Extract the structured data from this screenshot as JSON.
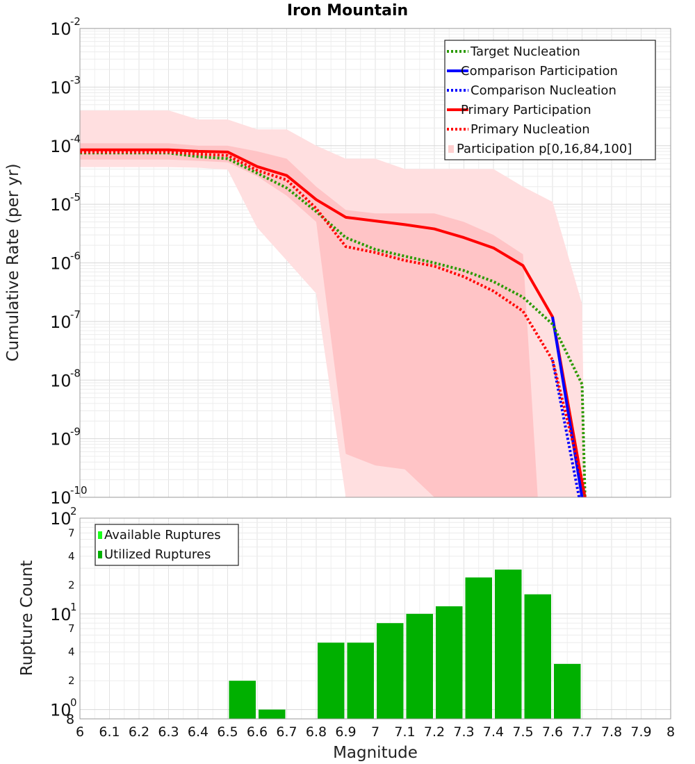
{
  "chart_data": [
    {
      "type": "line",
      "title": "Iron Mountain",
      "xlabel": "",
      "ylabel": "Cumulative Rate (per yr)",
      "y_scale": "log",
      "xlim": [
        6,
        8
      ],
      "ylim": [
        1e-10,
        0.01
      ],
      "y_tick_bases": [
        "10",
        "10",
        "10",
        "10",
        "10",
        "10",
        "10",
        "10",
        "10"
      ],
      "y_tick_exponents": [
        "-10",
        "-9",
        "-8",
        "-7",
        "-6",
        "-5",
        "-4",
        "-3",
        "-2"
      ],
      "legend_position": "top-right",
      "legend": [
        {
          "label": "Target Nucleation",
          "color": "#2a9a00",
          "style": "dotted"
        },
        {
          "label": "Comparison Participation",
          "color": "#0000ff",
          "style": "solid"
        },
        {
          "label": "Comparison Nucleation",
          "color": "#0000ff",
          "style": "dotted"
        },
        {
          "label": "Primary Participation",
          "color": "#ff0000",
          "style": "solid"
        },
        {
          "label": "Primary Nucleation",
          "color": "#ff0000",
          "style": "dotted"
        },
        {
          "label": "Participation p[0,16,84,100]",
          "color": "#ffcfcf",
          "style": "band"
        }
      ],
      "bands": [
        {
          "name": "Participation p[0,100]",
          "color": "#ffdfe0",
          "x": [
            6.0,
            6.1,
            6.2,
            6.3,
            6.4,
            6.5,
            6.6,
            6.7,
            6.8,
            6.9,
            7.0,
            7.1,
            7.2,
            7.3,
            7.4,
            7.5,
            7.6,
            7.7,
            7.71
          ],
          "upper": [
            0.0004,
            0.0004,
            0.0004,
            0.0004,
            0.00028,
            0.00028,
            0.00019,
            0.00019,
            0.0001,
            6e-05,
            6e-05,
            4e-05,
            4e-05,
            4e-05,
            4e-05,
            2e-05,
            1.1e-05,
            2e-07,
            1e-10
          ],
          "lower": [
            4.3e-05,
            4.3e-05,
            4.3e-05,
            4.3e-05,
            4.2e-05,
            3.9e-05,
            4e-06,
            1.1e-06,
            3e-07,
            1e-10,
            1e-10,
            1e-10,
            1e-10,
            1e-10,
            1e-10,
            1e-10,
            1e-10,
            1e-10,
            1e-10
          ]
        },
        {
          "name": "Participation p[16,84]",
          "color": "#ffc4c6",
          "x": [
            6.0,
            6.1,
            6.2,
            6.3,
            6.4,
            6.5,
            6.6,
            6.7,
            6.8,
            6.9,
            7.0,
            7.1,
            7.2,
            7.3,
            7.4,
            7.5,
            7.55
          ],
          "upper": [
            0.00011,
            0.00011,
            0.00011,
            0.00011,
            0.0001,
            0.0001,
            8e-05,
            6e-05,
            2e-05,
            8e-06,
            7e-06,
            7e-06,
            7e-06,
            5e-06,
            3e-06,
            1.4e-06,
            1e-10
          ],
          "lower": [
            5.8e-05,
            5.8e-05,
            5.8e-05,
            5.8e-05,
            5.5e-05,
            5.2e-05,
            3e-05,
            1.4e-05,
            5e-06,
            5.5e-10,
            3.5e-10,
            3e-10,
            1e-10,
            1e-10,
            1e-10,
            1e-10,
            1e-10
          ]
        }
      ],
      "series": [
        {
          "name": "Primary Participation",
          "color": "#ff0000",
          "style": "solid",
          "x": [
            6.0,
            6.1,
            6.2,
            6.3,
            6.4,
            6.5,
            6.6,
            6.7,
            6.8,
            6.9,
            7.0,
            7.1,
            7.2,
            7.3,
            7.4,
            7.5,
            7.6,
            7.7,
            7.71
          ],
          "values": [
            8.5e-05,
            8.5e-05,
            8.5e-05,
            8.5e-05,
            8e-05,
            7.8e-05,
            4.4e-05,
            3.1e-05,
            1.2e-05,
            6e-06,
            5.2e-06,
            4.5e-06,
            3.8e-06,
            2.7e-06,
            1.8e-06,
            9e-07,
            1.2e-07,
            1.8e-10,
            1e-10
          ]
        },
        {
          "name": "Comparison Participation",
          "color": "#0000ff",
          "style": "solid",
          "x": [
            7.6,
            7.7
          ],
          "values": [
            1.2e-07,
            1e-10
          ]
        },
        {
          "name": "Comparison Nucleation",
          "color": "#0000ff",
          "style": "dotted",
          "x": [
            7.6,
            7.69
          ],
          "values": [
            2.2e-08,
            1e-10
          ]
        },
        {
          "name": "Target Nucleation",
          "color": "#2a9a00",
          "style": "dotted",
          "x": [
            6.0,
            6.1,
            6.2,
            6.3,
            6.4,
            6.5,
            6.6,
            6.7,
            6.8,
            6.9,
            7.0,
            7.1,
            7.2,
            7.3,
            7.4,
            7.5,
            7.6,
            7.7,
            7.71
          ],
          "values": [
            7.5e-05,
            7.5e-05,
            7.5e-05,
            7.5e-05,
            6.5e-05,
            6e-05,
            3.4e-05,
            1.9e-05,
            7.5e-06,
            2.7e-06,
            1.7e-06,
            1.3e-06,
            1e-06,
            7.4e-07,
            4.8e-07,
            2.6e-07,
            9e-08,
            8.5e-09,
            1e-10
          ]
        },
        {
          "name": "Primary Nucleation",
          "color": "#ff0000",
          "style": "dotted",
          "x": [
            6.0,
            6.1,
            6.2,
            6.3,
            6.4,
            6.5,
            6.6,
            6.7,
            6.8,
            6.9,
            7.0,
            7.1,
            7.2,
            7.3,
            7.4,
            7.5,
            7.6,
            7.7,
            7.71
          ],
          "values": [
            7.8e-05,
            7.8e-05,
            7.8e-05,
            7.8e-05,
            7.2e-05,
            6.8e-05,
            3.8e-05,
            2.6e-05,
            8.5e-06,
            1.9e-06,
            1.5e-06,
            1.1e-06,
            8.8e-07,
            5.8e-07,
            3.3e-07,
            1.5e-07,
            2.2e-08,
            2e-10,
            1e-10
          ]
        }
      ]
    },
    {
      "type": "bar",
      "title": "",
      "xlabel": "Magnitude",
      "ylabel": "Rupture Count",
      "y_scale": "log",
      "xlim": [
        6,
        8
      ],
      "ylim": [
        0.8,
        100
      ],
      "x_ticks": [
        "6",
        "6.1",
        "6.2",
        "6.3",
        "6.4",
        "6.5",
        "6.6",
        "6.7",
        "6.8",
        "6.9",
        "7",
        "7.1",
        "7.2",
        "7.3",
        "7.4",
        "7.5",
        "7.6",
        "7.7",
        "7.8",
        "7.9",
        "8"
      ],
      "y_tick_bases": [
        "10",
        "10",
        "10"
      ],
      "y_tick_exponents": [
        "0",
        "1",
        "2"
      ],
      "y_minor_labels": [
        "2",
        "4",
        "7",
        "2",
        "4",
        "7"
      ],
      "y_bottom_label": "8",
      "legend_position": "top-left",
      "legend": [
        {
          "label": "Available Ruptures",
          "color": "#1aff1a"
        },
        {
          "label": "Utilized Ruptures",
          "color": "#00b000"
        }
      ],
      "series": [
        {
          "name": "Utilized Ruptures",
          "color": "#00b000",
          "x": [
            6.55,
            6.65,
            6.85,
            6.95,
            7.05,
            7.15,
            7.25,
            7.35,
            7.45,
            7.55,
            7.65
          ],
          "values": [
            2,
            1,
            5,
            5,
            8,
            10,
            12,
            24,
            29,
            16,
            3
          ]
        }
      ]
    }
  ]
}
